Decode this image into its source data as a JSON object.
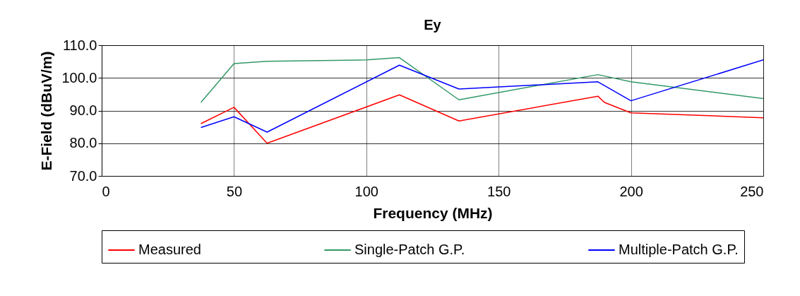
{
  "chart_data": {
    "type": "line",
    "title": "Ey",
    "xlabel": "Frequency (MHz)",
    "ylabel": "E-Field (dBuV/m)",
    "xlim": [
      0,
      250
    ],
    "xticks": [
      0,
      50,
      100,
      150,
      200,
      250
    ],
    "ylim": [
      70,
      110
    ],
    "yticks": [
      {
        "value": 70,
        "label": "70.0"
      },
      {
        "value": 80,
        "label": "80.0"
      },
      {
        "value": 90,
        "label": "90.0"
      },
      {
        "value": 100,
        "label": "100.0"
      },
      {
        "value": 110,
        "label": "110.0"
      }
    ],
    "grid": true,
    "legend": "bottom",
    "marker": "none",
    "series": [
      {
        "name": "Measured",
        "color": "#ff0000",
        "x": [
          37.5,
          50,
          62.5,
          112.5,
          135,
          187.5,
          190,
          200,
          250
        ],
        "values": [
          86.0,
          91.0,
          80.0,
          94.8,
          86.8,
          94.4,
          92.5,
          89.3,
          87.8
        ]
      },
      {
        "name": "Single-Patch G.P.",
        "color": "#339966",
        "x": [
          37.5,
          50,
          62.5,
          100,
          112.5,
          135,
          187.5,
          200,
          250
        ],
        "values": [
          92.5,
          104.4,
          105.1,
          105.5,
          106.2,
          93.3,
          101.0,
          98.8,
          93.7
        ]
      },
      {
        "name": "Multiple-Patch G.P.",
        "color": "#0000ff",
        "x": [
          37.5,
          50,
          62.5,
          112.5,
          135,
          187.5,
          200,
          250
        ],
        "values": [
          84.8,
          88.1,
          83.4,
          103.9,
          96.6,
          98.8,
          93.0,
          105.5
        ]
      }
    ]
  }
}
